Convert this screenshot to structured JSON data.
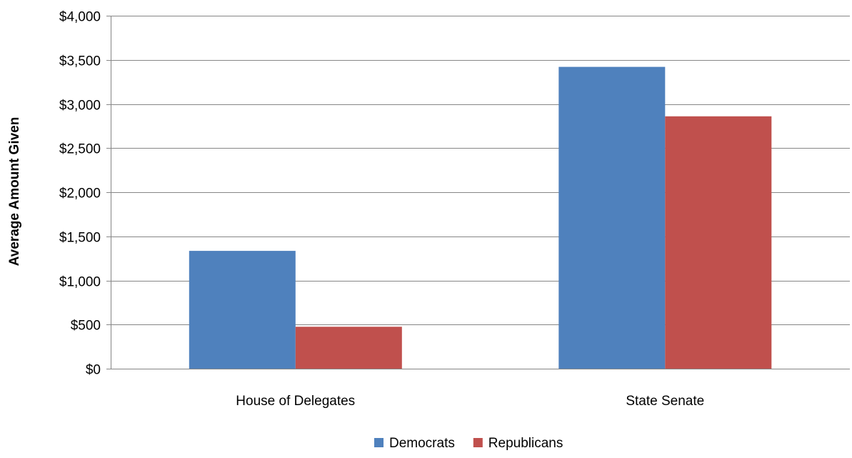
{
  "chart_data": {
    "type": "bar",
    "title": "",
    "xlabel": "",
    "ylabel": "Average Amount Given",
    "categories": [
      "House of Delegates",
      "State Senate"
    ],
    "series": [
      {
        "name": "Democrats",
        "values": [
          1335,
          3420
        ],
        "color": "#4F81BD"
      },
      {
        "name": "Republicans",
        "values": [
          475,
          2860
        ],
        "color": "#C0504D"
      }
    ],
    "ylim": [
      0,
      4000
    ],
    "yticks": [
      0,
      500,
      1000,
      1500,
      2000,
      2500,
      3000,
      3500,
      4000
    ],
    "ytick_labels": [
      "$0",
      "$500",
      "$1,000",
      "$1,500",
      "$2,000",
      "$2,500",
      "$3,000",
      "$3,500",
      "$4,000"
    ],
    "grid": true,
    "legend_position": "bottom"
  }
}
